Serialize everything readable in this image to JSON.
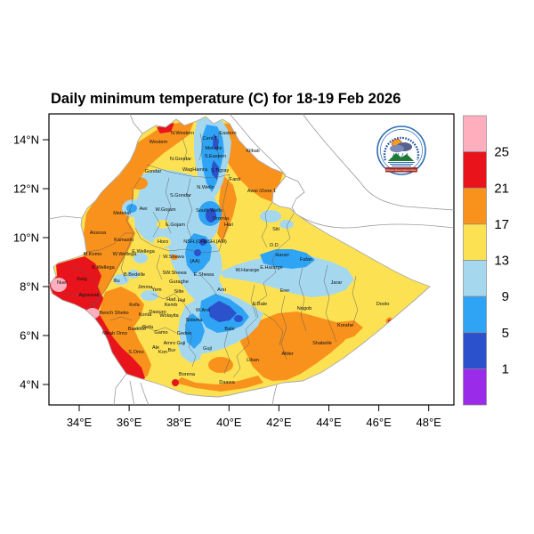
{
  "title": "Daily minimum temperature (C) for 18-19 Feb 2026",
  "axis": {
    "x_labels": [
      "34°E",
      "36°E",
      "38°E",
      "40°E",
      "42°E",
      "44°E",
      "46°E",
      "48°E"
    ],
    "y_labels": [
      "14°N",
      "12°N",
      "10°N",
      "8°N",
      "6°N",
      "4°N"
    ]
  },
  "legend": {
    "values": [
      "25",
      "21",
      "17",
      "13",
      "9",
      "5",
      "1"
    ],
    "cell_order_top_to_bottom": [
      "pink",
      "red",
      "orange",
      "yellow",
      "light_blue",
      "blue",
      "dark_blue",
      "purple"
    ],
    "colors": {
      "pink": "#FFAEBE",
      "red": "#E8131B",
      "orange": "#F8921C",
      "yellow": "#FCE253",
      "light_blue": "#A5D8EF",
      "blue": "#2FA4F5",
      "dark_blue": "#2B51CD",
      "purple": "#9A2BE8",
      "border": "#888888"
    }
  },
  "logo": {
    "org": "Ethiopian Meteorological Institute"
  },
  "zones": [
    [
      "Westem",
      178,
      161
    ],
    [
      "N.Western",
      205,
      151
    ],
    [
      "Cent.T",
      236,
      157
    ],
    [
      "Eastern",
      256,
      151
    ],
    [
      "Mekelle",
      240,
      168
    ],
    [
      "S.Eastern",
      242,
      177
    ],
    [
      "Kilbati",
      284,
      171
    ],
    [
      "N.Gondar",
      203,
      180
    ],
    [
      "Gondar",
      172,
      194
    ],
    [
      "WagHamra",
      219,
      192
    ],
    [
      "S.Tigray",
      247,
      193
    ],
    [
      "Fanti",
      264,
      203
    ],
    [
      "N.Wello",
      231,
      212
    ],
    [
      "Awsi /Zone 1",
      294,
      216
    ],
    [
      "S.Gondar",
      203,
      221
    ],
    [
      "South Wello",
      235,
      238
    ],
    [
      "Oromia",
      248,
      247
    ],
    [
      "Hari",
      257,
      254
    ],
    [
      "Awi",
      161,
      236
    ],
    [
      "W.Gojam",
      186,
      237
    ],
    [
      "Metekel",
      137,
      241
    ],
    [
      "E.Gojam",
      197,
      254
    ],
    [
      "Assosa",
      110,
      263
    ],
    [
      "Kamashi",
      139,
      271
    ],
    [
      "Horo",
      183,
      273
    ],
    [
      "NSH.(OR)",
      219,
      273
    ],
    [
      "NSH.(AM)",
      242,
      273
    ],
    [
      "M.Komo",
      104,
      287
    ],
    [
      "W.Wellega",
      140,
      287
    ],
    [
      "E.Wellega",
      161,
      284
    ],
    [
      "W.Shewa",
      195,
      290
    ],
    [
      "K.Wellega",
      116,
      302
    ],
    [
      "B.Bedelle",
      151,
      310
    ],
    [
      "SW.Shewa",
      196,
      308
    ],
    [
      "E.Shewa",
      229,
      310
    ],
    [
      "Illu",
      131,
      317
    ],
    [
      "Guraghe",
      201,
      318
    ],
    [
      "(AA)",
      219,
      295
    ],
    [
      "Jimma",
      163,
      324
    ],
    [
      "Yem",
      176,
      327
    ],
    [
      "Silte",
      201,
      329
    ],
    [
      "Had.",
      193,
      338
    ],
    [
      "Hal",
      204,
      339
    ],
    [
      "Kemb",
      192,
      344
    ],
    [
      "Nuer",
      70,
      319
    ],
    [
      "Kelg",
      92,
      315
    ],
    [
      "Agnewak",
      100,
      333
    ],
    [
      "Kefa",
      151,
      344
    ],
    [
      "Bench Sheko",
      128,
      353
    ],
    [
      "Konta",
      163,
      355
    ],
    [
      "Dawuro",
      177,
      352
    ],
    [
      "Wolayita",
      190,
      356
    ],
    [
      "Sidama",
      218,
      361
    ],
    [
      "W.Arsi",
      228,
      350
    ],
    [
      "Arsi",
      249,
      327
    ],
    [
      "Bale",
      258,
      371
    ],
    [
      "E.Bale",
      292,
      343
    ],
    [
      "W.Hararge",
      278,
      305
    ],
    [
      "E.Hararge",
      305,
      302
    ],
    [
      "Harari",
      317,
      288
    ],
    [
      "D.D",
      308,
      277
    ],
    [
      "Siti",
      310,
      259
    ],
    [
      "Fafan",
      344,
      293
    ],
    [
      "Jarar",
      378,
      319
    ],
    [
      "Erer",
      320,
      328
    ],
    [
      "Nogob",
      342,
      348
    ],
    [
      "Korahe",
      388,
      367
    ],
    [
      "Doolo",
      430,
      343
    ],
    [
      "Shabelle",
      362,
      387
    ],
    [
      "Afder",
      323,
      399
    ],
    [
      "Liban",
      284,
      406
    ],
    [
      "Borena",
      210,
      422
    ],
    [
      "Daawa",
      255,
      431
    ],
    [
      "Guji",
      233,
      393
    ],
    [
      "Gedeo",
      207,
      376
    ],
    [
      "Amro Guji",
      196,
      387
    ],
    [
      "Gamo",
      181,
      375
    ],
    [
      "Gofa",
      166,
      369
    ],
    [
      "Basketo",
      154,
      371
    ],
    [
      "S.Omo",
      153,
      397
    ],
    [
      "Mirab Omo",
      129,
      376
    ],
    [
      "Ale",
      175,
      392
    ],
    [
      "Kon",
      183,
      397
    ],
    [
      "Bur",
      193,
      395
    ]
  ],
  "chart_data": {
    "type": "heatmap",
    "title": "Daily minimum temperature (C) for 18-19 Feb 2026",
    "units": "°C",
    "x_axis": {
      "ticks": [
        34,
        36,
        38,
        40,
        42,
        44,
        46,
        48
      ],
      "suffix": "°E"
    },
    "y_axis": {
      "ticks": [
        4,
        6,
        8,
        10,
        12,
        14
      ],
      "suffix": "°N"
    },
    "legend_thresholds": [
      1,
      5,
      9,
      13,
      17,
      21,
      25
    ],
    "legend_colors_top_to_bottom": [
      "#FFAEBE",
      "#E8131B",
      "#F8921C",
      "#FCE253",
      "#A5D8EF",
      "#2FA4F5",
      "#2B51CD",
      "#9A2BE8"
    ],
    "regional_pattern": {
      "western_border_lowlands_gambella": "21-25 C with spots above 25 C",
      "west_benishangul_wellega": "17-21 C",
      "central_north_south_highland_band": "5-13 C with pockets of 1-5 C (Tigray spine, South Wello, North Shewa, Arsi-Bale)",
      "afar_northeast_kilbati": "17-21 C with 13-17 C patches",
      "eastern_somali_lowlands": "13-17 C with a 9-13 C band over Siti/Fafan/Jarar",
      "southeast_shabelle_afder_liban": "17-21 C",
      "southwest_omo_bench": "21-25 C with spots above 25 C",
      "far_south_borena_daawa": "13-17 C with 17-21 C along the border"
    }
  }
}
